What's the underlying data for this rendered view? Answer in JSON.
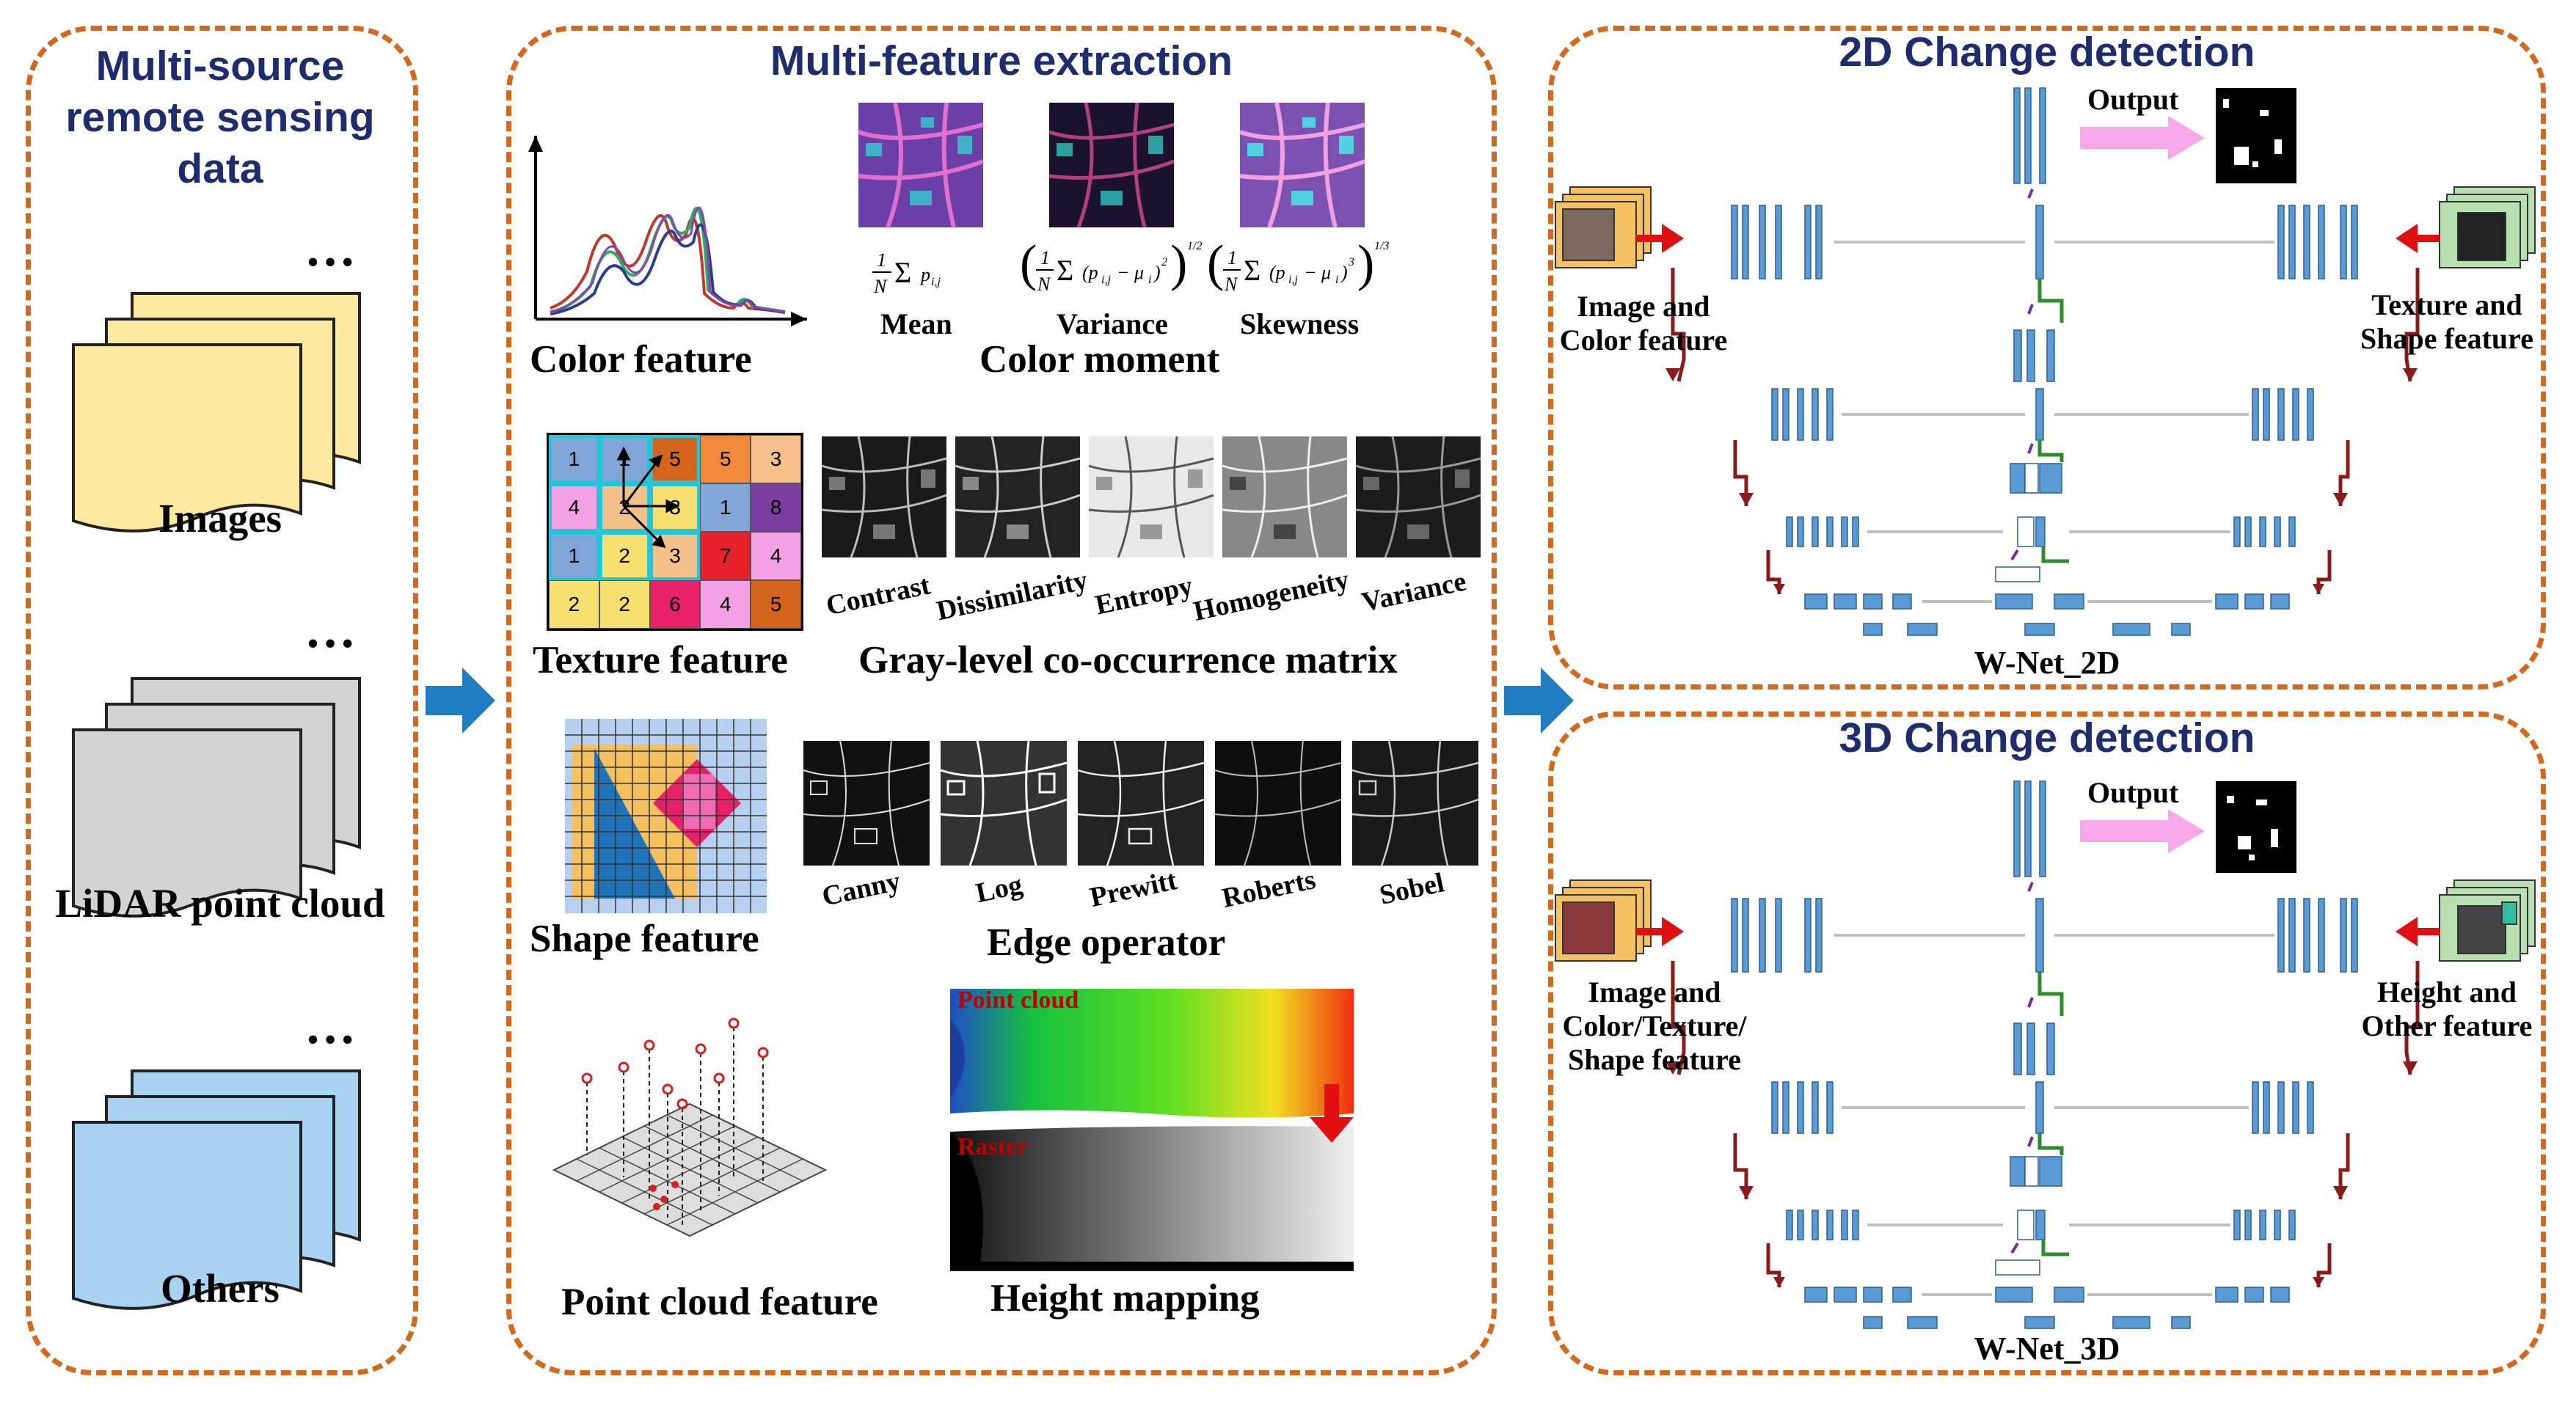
{
  "panels": {
    "sources": {
      "title": "Multi-source remote sensing data",
      "title_lines": [
        "Multi-source",
        "remote sensing",
        "data"
      ],
      "items": [
        {
          "label": "Images",
          "color": "#fde9a0"
        },
        {
          "label": "LiDAR point cloud",
          "color": "#d3d3d3"
        },
        {
          "label": "Others",
          "color": "#a9d2f0"
        }
      ],
      "ellipsis": "…"
    },
    "features": {
      "title": "Multi-feature extraction",
      "color_feature": "Color feature",
      "color_moment": "Color moment",
      "moments": [
        "Mean",
        "Variance",
        "Skewness"
      ],
      "texture_feature": "Texture feature",
      "glcm": "Gray-level co-occurrence matrix",
      "glcm_items": [
        "Contrast",
        "Dissimilarity",
        "Entropy",
        "Homogeneity",
        "Variance"
      ],
      "glcm_grid": [
        [
          "1",
          "1",
          "5",
          "5",
          "3"
        ],
        [
          "4",
          "2",
          "3",
          "1",
          "8"
        ],
        [
          "1",
          "2",
          "3",
          "7",
          "4"
        ],
        [
          "2",
          "2",
          "6",
          "4",
          "5"
        ]
      ],
      "shape_feature": "Shape feature",
      "edge_operator": "Edge operator",
      "edge_items": [
        "Canny",
        "Log",
        "Prewitt",
        "Roberts",
        "Sobel"
      ],
      "point_cloud_feature": "Point cloud feature",
      "height_mapping": "Height mapping",
      "point_cloud_tag": "Point cloud",
      "raster_tag": "Raster"
    },
    "change2d": {
      "title": "2D Change detection",
      "output": "Output",
      "left_input": [
        "Image and",
        "Color feature"
      ],
      "right_input": [
        "Texture and",
        "Shape feature"
      ],
      "net": "W-Net_2D"
    },
    "change3d": {
      "title": "3D Change detection",
      "output": "Output",
      "left_input": [
        "Image and",
        "Color/Texture/",
        "Shape feature"
      ],
      "right_input": [
        "Height and",
        "Other feature"
      ],
      "net": "W-Net_3D"
    }
  },
  "colors": {
    "border": "#d2691e",
    "title": "#1f2d6e",
    "flow_arrow": "#1f7cc1",
    "net_block": "#5b9bd5",
    "skip": "#c0c0c0",
    "up_path": "#8b1a1a",
    "down_path": "#2e8b2e",
    "output_arrow": "#f8a8e8"
  }
}
